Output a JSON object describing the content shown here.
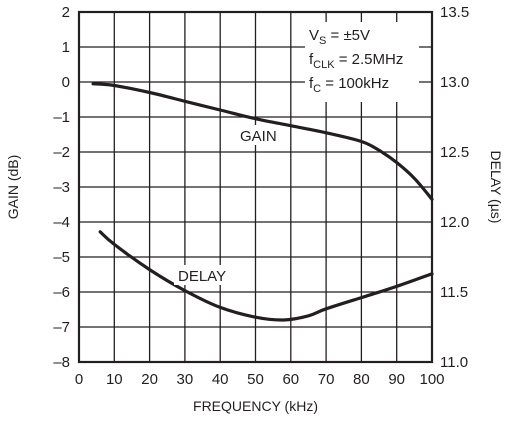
{
  "chart_data": {
    "type": "line",
    "xlabel": "FREQUENCY (kHz)",
    "ylabel_left": "GAIN (dB)",
    "ylabel_right": "DELAY (µs)",
    "xlim": [
      0,
      100
    ],
    "ylim_left": [
      -8,
      2
    ],
    "ylim_right": [
      11.0,
      13.5
    ],
    "grid": true,
    "x_ticks": [
      0,
      10,
      20,
      30,
      40,
      50,
      60,
      70,
      80,
      90,
      100
    ],
    "y_left_ticks": [
      2,
      1,
      0,
      -1,
      -2,
      -3,
      -4,
      -5,
      -6,
      -7,
      -8
    ],
    "y_left_tick_labels": [
      "2",
      "1",
      "0",
      "–1",
      "–2",
      "–3",
      "–4",
      "–5",
      "–6",
      "–7",
      "–8"
    ],
    "y_right_ticks": [
      13.5,
      13.0,
      12.5,
      12.0,
      11.5,
      11.0
    ],
    "y_right_tick_labels": [
      "13.5",
      "13.0",
      "12.5",
      "12.0",
      "11.5",
      "11.0"
    ],
    "series": [
      {
        "name": "GAIN",
        "axis": "left",
        "x": [
          4,
          10,
          20,
          30,
          40,
          50,
          60,
          70,
          80,
          85,
          90,
          95,
          100
        ],
        "y": [
          -0.05,
          -0.1,
          -0.3,
          -0.55,
          -0.8,
          -1.05,
          -1.25,
          -1.45,
          -1.7,
          -1.95,
          -2.3,
          -2.75,
          -3.35
        ]
      },
      {
        "name": "DELAY",
        "axis": "right",
        "x": [
          6,
          10,
          20,
          30,
          40,
          50,
          58,
          65,
          70,
          80,
          90,
          100
        ],
        "y": [
          11.93,
          11.84,
          11.66,
          11.51,
          11.39,
          11.32,
          11.3,
          11.33,
          11.38,
          11.46,
          11.54,
          11.63
        ]
      }
    ],
    "annotations": {
      "vs_main": "V",
      "vs_sub": "S",
      "vs_rest": " = ±5V",
      "fclk_main": "f",
      "fclk_sub": "CLK",
      "fclk_rest": " = 2.5MHz",
      "fc_main": "f",
      "fc_sub": "C",
      "fc_rest": " = 100kHz",
      "gain_label": "GAIN",
      "delay_label": "DELAY"
    }
  }
}
